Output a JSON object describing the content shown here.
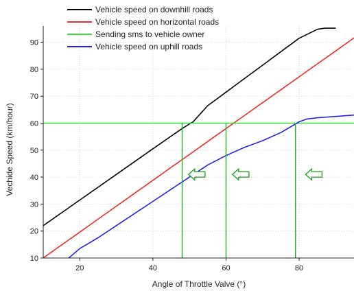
{
  "chart_data": {
    "type": "line",
    "xlabel": "Angle of Throttle Valve (°)",
    "ylabel": "Vechide Speed (km/hour)",
    "xlim": [
      10,
      95
    ],
    "ylim": [
      10,
      96
    ],
    "x_ticks": [
      20,
      40,
      60,
      80
    ],
    "y_ticks": [
      10,
      20,
      30,
      40,
      50,
      60,
      70,
      80,
      90
    ],
    "x_tick_labels": [
      "20",
      "40",
      "60",
      "80"
    ],
    "y_tick_labels": [
      "10",
      "20",
      "30",
      "40",
      "50",
      "60",
      "70",
      "80",
      "90"
    ],
    "grid": true,
    "legend_position": "top-left, above plot",
    "series": [
      {
        "name": "Vehicle speed on downhill roads",
        "color": "#000000",
        "x": [
          10,
          20,
          30,
          40,
          48,
          51,
          53,
          55,
          57,
          60,
          65,
          70,
          75,
          80,
          85,
          87,
          88,
          90
        ],
        "y": [
          22,
          31.5,
          41,
          50.5,
          58,
          60.5,
          63.5,
          66.5,
          68.5,
          71.5,
          76.5,
          81.5,
          86.5,
          91.5,
          94.8,
          95.2,
          95.2,
          95.2
        ]
      },
      {
        "name": "Vehicle speed on horizontal roads",
        "color": "#ee2a2a",
        "x": [
          10,
          15,
          20,
          25,
          30,
          35,
          40,
          45,
          50,
          55,
          60,
          65,
          70,
          75,
          80,
          85,
          90,
          95
        ],
        "y": [
          10,
          14.8,
          19.6,
          24.4,
          29.2,
          34,
          38.8,
          43.6,
          48.4,
          53.2,
          58,
          62.8,
          67.6,
          72.4,
          77.2,
          82,
          86.8,
          91.6
        ]
      },
      {
        "name": "Sending sms to vehicle owner",
        "color": "#33dd33",
        "x": [
          10,
          95
        ],
        "y": [
          60,
          60
        ]
      },
      {
        "name": "Vehicle speed on uphill roads",
        "color": "#2222ee",
        "x": [
          17,
          20,
          25,
          30,
          35,
          40,
          45,
          50,
          55,
          60,
          65,
          70,
          75,
          80,
          82,
          85,
          90,
          95
        ],
        "y": [
          10,
          13.5,
          17.5,
          22,
          26.5,
          31,
          35.5,
          40,
          44.5,
          48,
          51,
          53.5,
          56.5,
          60.5,
          61.5,
          62,
          62.5,
          63
        ]
      }
    ],
    "annotations": {
      "marker_color": "#22aa22",
      "threshold_y": 60,
      "vertical_lines_x": [
        48,
        60,
        79
      ],
      "arrows": [
        {
          "x": 52,
          "y": 41,
          "direction": "left"
        },
        {
          "x": 64,
          "y": 41,
          "direction": "left"
        },
        {
          "x": 84,
          "y": 41,
          "direction": "left"
        }
      ]
    }
  }
}
